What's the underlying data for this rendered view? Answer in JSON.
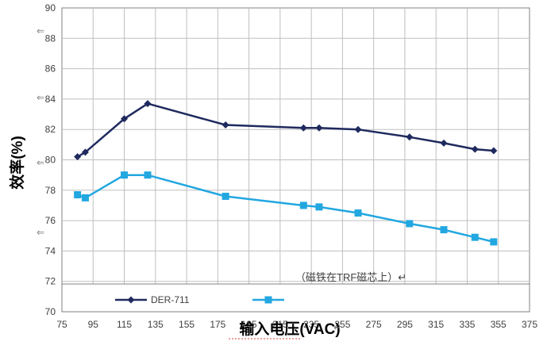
{
  "chart_data": {
    "type": "line",
    "xlabel": "输入电压(VAC)",
    "ylabel": "效率(%)",
    "xlim": [
      75,
      375
    ],
    "ylim": [
      70,
      90
    ],
    "x_ticks": [
      75,
      95,
      115,
      135,
      155,
      175,
      195,
      215,
      235,
      255,
      275,
      295,
      315,
      335,
      355,
      375
    ],
    "y_ticks": [
      70,
      72,
      74,
      76,
      78,
      80,
      82,
      84,
      86,
      88,
      90
    ],
    "grid": true,
    "legend_position": "bottom",
    "annotation": "（磁铁在TRF磁芯上）↵",
    "series": [
      {
        "name": "DER-711",
        "color": "#1f2a5e",
        "marker": "diamond",
        "points": [
          [
            85,
            80.2
          ],
          [
            90,
            80.5
          ],
          [
            115,
            82.7
          ],
          [
            130,
            83.7
          ],
          [
            180,
            82.3
          ],
          [
            230,
            82.1
          ],
          [
            240,
            82.1
          ],
          [
            265,
            82.0
          ],
          [
            298,
            81.5
          ],
          [
            320,
            81.1
          ],
          [
            340,
            80.7
          ],
          [
            352,
            80.6
          ]
        ]
      },
      {
        "name": "",
        "color": "#22a7e0",
        "marker": "square",
        "points": [
          [
            85,
            77.7
          ],
          [
            90,
            77.5
          ],
          [
            115,
            79.0
          ],
          [
            130,
            79.0
          ],
          [
            180,
            77.6
          ],
          [
            230,
            77.0
          ],
          [
            240,
            76.9
          ],
          [
            265,
            76.5
          ],
          [
            298,
            75.8
          ],
          [
            320,
            75.4
          ],
          [
            340,
            74.9
          ],
          [
            352,
            74.6
          ]
        ]
      }
    ]
  },
  "margin_marks": "⇐",
  "return_marks": "↵"
}
